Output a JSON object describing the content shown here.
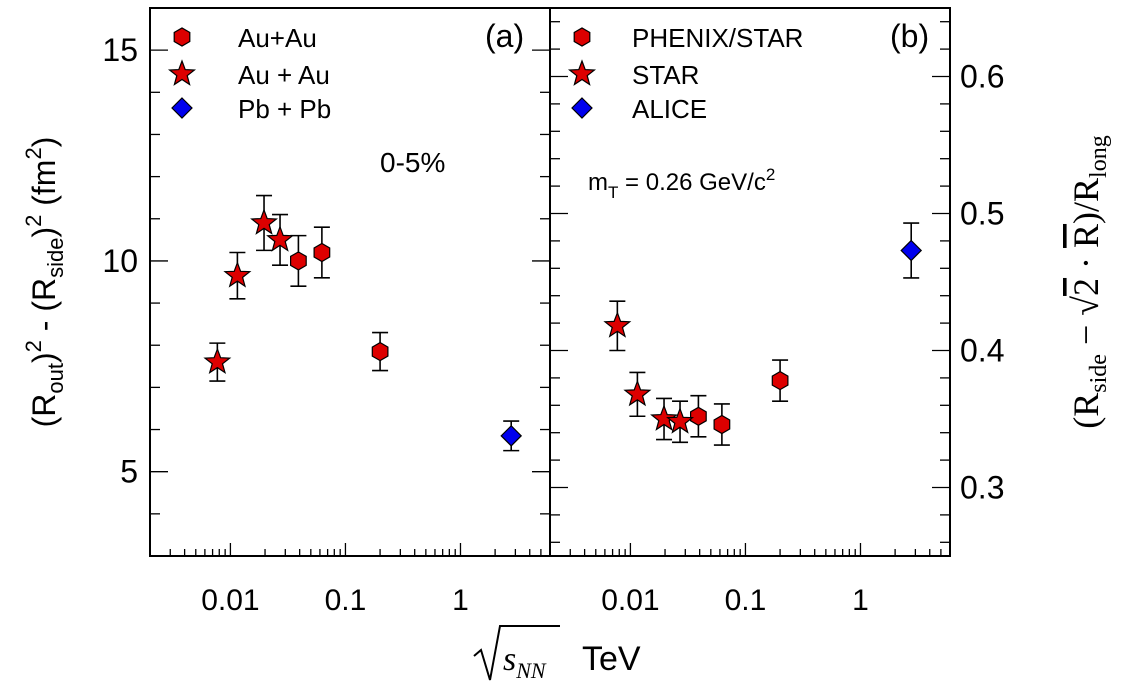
{
  "chart_data": [
    {
      "panel": "(a)",
      "type": "scatter",
      "xscale": "log",
      "xlim": [
        0.002,
        6
      ],
      "ylim": [
        3,
        16
      ],
      "x_tick_labels": [
        "0.01",
        "0.1",
        "1"
      ],
      "y_tick_labels": [
        "5",
        "10",
        "15"
      ],
      "y_ticks": [
        5,
        10,
        15
      ],
      "ylabel": "(R_out)^2 - (R_side)^2 (fm^2)",
      "annotation": "0-5%",
      "series": [
        {
          "name": "Au+Au",
          "marker": "hexagon",
          "color": "#dd0000",
          "points": [
            {
              "x": 0.039,
              "y": 10.0,
              "err": 0.6
            },
            {
              "x": 0.0624,
              "y": 10.2,
              "err": 0.6
            },
            {
              "x": 0.2,
              "y": 7.85,
              "err": 0.45
            }
          ]
        },
        {
          "name": "Au + Au",
          "marker": "star",
          "color": "#dd0000",
          "points": [
            {
              "x": 0.0077,
              "y": 7.6,
              "err": 0.45
            },
            {
              "x": 0.0115,
              "y": 9.65,
              "err": 0.55
            },
            {
              "x": 0.0196,
              "y": 10.9,
              "err": 0.65
            },
            {
              "x": 0.027,
              "y": 10.5,
              "err": 0.6
            }
          ]
        },
        {
          "name": "Pb + Pb",
          "marker": "diamond",
          "color": "#0000ee",
          "points": [
            {
              "x": 2.76,
              "y": 5.85,
              "err": 0.35
            }
          ]
        }
      ]
    },
    {
      "panel": "(b)",
      "type": "scatter",
      "xscale": "log",
      "xlim": [
        0.002,
        6
      ],
      "ylim": [
        0.25,
        0.65
      ],
      "x_tick_labels": [
        "0.01",
        "0.1",
        "1"
      ],
      "y_tick_labels": [
        "0.3",
        "0.4",
        "0.5",
        "0.6"
      ],
      "y_ticks": [
        0.3,
        0.4,
        0.5,
        0.6
      ],
      "ylabel": "(R_side - sqrt(2)·R̄)/R_long",
      "annotation": "m_T = 0.26 GeV/c^2",
      "series": [
        {
          "name": "PHENIX/STAR",
          "marker": "hexagon",
          "color": "#dd0000",
          "points": [
            {
              "x": 0.039,
              "y": 0.352,
              "err": 0.015
            },
            {
              "x": 0.0624,
              "y": 0.346,
              "err": 0.015
            },
            {
              "x": 0.2,
              "y": 0.378,
              "err": 0.015
            }
          ]
        },
        {
          "name": "STAR",
          "marker": "star",
          "color": "#dd0000",
          "points": [
            {
              "x": 0.0077,
              "y": 0.418,
              "err": 0.018
            },
            {
              "x": 0.0115,
              "y": 0.368,
              "err": 0.016
            },
            {
              "x": 0.0196,
              "y": 0.35,
              "err": 0.015
            },
            {
              "x": 0.027,
              "y": 0.348,
              "err": 0.015
            }
          ]
        },
        {
          "name": "ALICE",
          "marker": "diamond",
          "color": "#0000ee",
          "points": [
            {
              "x": 2.76,
              "y": 0.473,
              "err": 0.02
            }
          ]
        }
      ]
    }
  ],
  "labels": {
    "panel_a": "(a)",
    "panel_b": "(b)",
    "x_axis_label": "TeV",
    "x_axis_sqrt": "s",
    "x_axis_sub": "NN",
    "ylabel_a": {
      "open": "(R",
      "out": "out",
      "mid": ")",
      "sq1": "2",
      "minus": " - (R",
      "side": "side",
      "close": ")",
      "sq2": "2",
      "unit": " (fm",
      "unit_sq": "2",
      "unit_close": ")"
    },
    "ylabel_b": {
      "open": "(R",
      "side": "side",
      "minus": " − ",
      "sqrt2": "2",
      "dot": " · ",
      "rbar": "R",
      "close": ")/R",
      "long": "long"
    },
    "annotation_a": "0-5%",
    "annotation_b_pre": "m",
    "annotation_b_sub": "T",
    "annotation_b_mid": " = 0.26 GeV/c",
    "annotation_b_sup": "2"
  }
}
